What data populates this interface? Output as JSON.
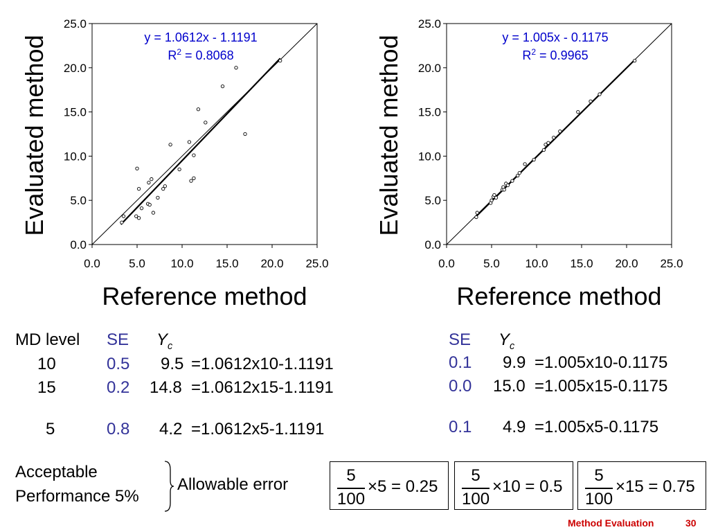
{
  "chart_data": [
    {
      "type": "scatter",
      "xlabel": "Reference method",
      "ylabel": "Evaluated method",
      "xlim": [
        0,
        25
      ],
      "ylim": [
        0,
        25
      ],
      "xticks": [
        "0.0",
        "5.0",
        "10.0",
        "15.0",
        "20.0",
        "25.0"
      ],
      "yticks": [
        "0.0",
        "5.0",
        "10.0",
        "15.0",
        "20.0",
        "25.0"
      ],
      "equation": "y = 1.0612x - 1.1191",
      "r2_label": "R",
      "r2_sup": "2",
      "r2_value": " = 0.8068",
      "fit": {
        "slope": 1.0612,
        "intercept": -1.1191,
        "x_range": [
          3.2,
          20.9
        ]
      },
      "identity_line": true,
      "grid": false,
      "points": [
        [
          3.3,
          2.5
        ],
        [
          3.5,
          3.2
        ],
        [
          4.9,
          3.2
        ],
        [
          5.2,
          3.0
        ],
        [
          5.0,
          8.6
        ],
        [
          5.2,
          6.3
        ],
        [
          5.5,
          4.1
        ],
        [
          6.2,
          4.6
        ],
        [
          6.3,
          7.0
        ],
        [
          6.4,
          4.5
        ],
        [
          6.6,
          7.4
        ],
        [
          6.8,
          3.6
        ],
        [
          7.3,
          5.3
        ],
        [
          7.9,
          6.3
        ],
        [
          8.1,
          6.6
        ],
        [
          8.7,
          11.3
        ],
        [
          9.7,
          8.5
        ],
        [
          10.8,
          11.6
        ],
        [
          11.0,
          7.2
        ],
        [
          11.3,
          7.5
        ],
        [
          11.3,
          10.1
        ],
        [
          11.8,
          15.3
        ],
        [
          12.6,
          13.8
        ],
        [
          14.5,
          17.9
        ],
        [
          16.0,
          20.0
        ],
        [
          17.0,
          12.5
        ],
        [
          20.9,
          20.8
        ]
      ]
    },
    {
      "type": "scatter",
      "xlabel": "Reference method",
      "ylabel": "Evaluated method",
      "xlim": [
        0,
        25
      ],
      "ylim": [
        0,
        25
      ],
      "xticks": [
        "0.0",
        "5.0",
        "10.0",
        "15.0",
        "20.0",
        "25.0"
      ],
      "yticks": [
        "0.0",
        "5.0",
        "10.0",
        "15.0",
        "20.0",
        "25.0"
      ],
      "equation": "y = 1.005x - 0.1175",
      "r2_label": "R",
      "r2_sup": "2",
      "r2_value": " = 0.9965",
      "fit": {
        "slope": 1.005,
        "intercept": -0.1175,
        "x_range": [
          3.2,
          20.9
        ]
      },
      "identity_line": true,
      "grid": false,
      "points": [
        [
          3.3,
          3.1
        ],
        [
          3.4,
          3.6
        ],
        [
          4.9,
          4.7
        ],
        [
          5.0,
          5.0
        ],
        [
          5.2,
          5.4
        ],
        [
          5.3,
          5.6
        ],
        [
          5.5,
          5.3
        ],
        [
          6.2,
          6.2
        ],
        [
          6.3,
          6.5
        ],
        [
          6.4,
          6.2
        ],
        [
          6.6,
          6.9
        ],
        [
          6.8,
          6.7
        ],
        [
          7.3,
          7.2
        ],
        [
          7.9,
          7.8
        ],
        [
          8.1,
          8.1
        ],
        [
          8.7,
          9.1
        ],
        [
          9.7,
          9.6
        ],
        [
          10.8,
          10.7
        ],
        [
          11.0,
          11.3
        ],
        [
          11.3,
          11.5
        ],
        [
          11.9,
          12.1
        ],
        [
          12.6,
          12.8
        ],
        [
          14.6,
          15.0
        ],
        [
          16.0,
          16.2
        ],
        [
          17.0,
          17.0
        ],
        [
          20.9,
          20.8
        ]
      ]
    }
  ],
  "table_left": {
    "headers": {
      "md_level": "MD level",
      "se": "SE",
      "yc": "Y",
      "yc_sub": "c"
    },
    "rows": [
      {
        "md": "10",
        "se": "0.5",
        "yc": "9.5",
        "formula": "=1.0612x10-1.1191"
      },
      {
        "md": "15",
        "se": "0.2",
        "yc": "14.8",
        "formula": "=1.0612x15-1.1191"
      },
      {
        "md": "5",
        "se": "0.8",
        "yc": "4.2",
        "formula": "=1.0612x5-1.1191"
      }
    ]
  },
  "table_right": {
    "headers": {
      "se": "SE",
      "yc": "Y",
      "yc_sub": "c"
    },
    "rows": [
      {
        "se": "0.1",
        "yc": "9.9",
        "formula": "=1.005x10-0.1175"
      },
      {
        "se": "0.0",
        "yc": "15.0",
        "formula": "=1.005x15-0.1175"
      },
      {
        "se": "0.1",
        "yc": "4.9",
        "formula": "=1.005x5-0.1175"
      }
    ]
  },
  "acceptable": {
    "line1": "Acceptable",
    "line2": "Performance 5%",
    "allowable": "Allowable error"
  },
  "formulas": [
    {
      "num": "5",
      "den": "100",
      "rest": "×5 = 0.25"
    },
    {
      "num": "5",
      "den": "100",
      "rest": "×10 = 0.5"
    },
    {
      "num": "5",
      "den": "100",
      "rest": "×15 = 0.75"
    }
  ],
  "footer": {
    "title": "Method Evaluation",
    "page": "30"
  },
  "colors": {
    "annotation": "#0000cc",
    "se_text": "#333399",
    "footer": "#cc0000"
  }
}
